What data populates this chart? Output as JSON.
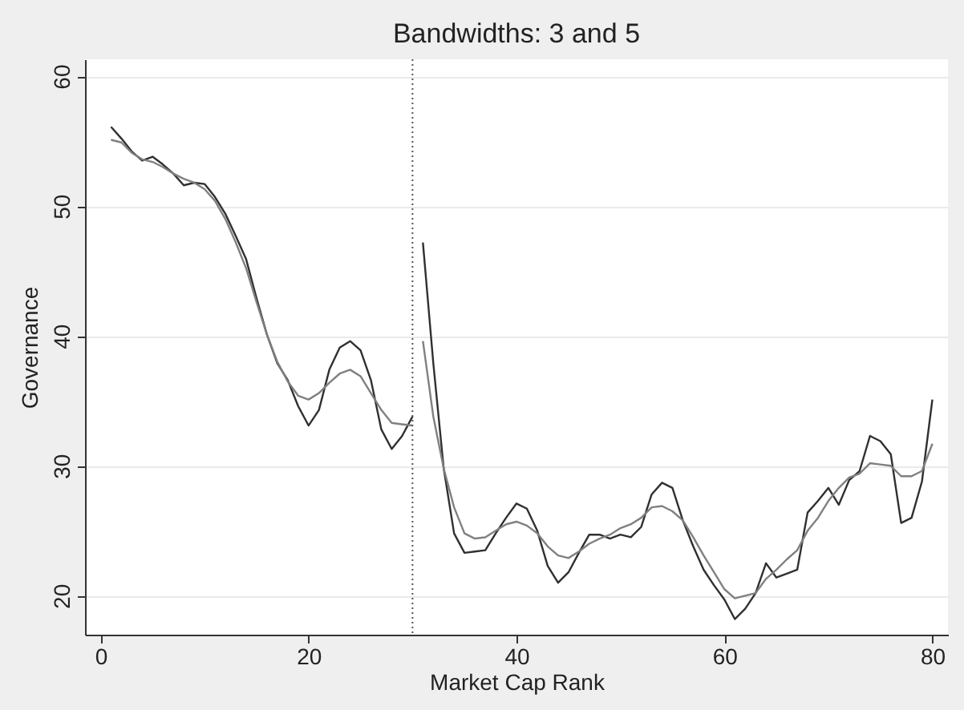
{
  "chart_data": {
    "type": "line",
    "title": "Bandwidths: 3 and 5",
    "xlabel": "Market Cap Rank",
    "ylabel": "Governance",
    "xlim": [
      -1.5,
      81.5
    ],
    "ylim": [
      17,
      61.3
    ],
    "xticks": [
      0,
      20,
      40,
      60,
      80
    ],
    "yticks": [
      20,
      30,
      40,
      50,
      60
    ],
    "grid": "y",
    "series": [
      {
        "color": "#303030",
        "x": [
          1,
          2,
          3,
          4,
          5,
          6,
          7,
          8,
          9,
          10,
          11,
          12,
          13,
          14,
          15,
          16,
          17,
          18,
          19,
          20,
          21,
          22,
          23,
          24,
          25,
          26,
          27,
          28,
          29,
          30
        ],
        "values": [
          56.1,
          55.2,
          54.2,
          53.5,
          53.8,
          53.2,
          52.5,
          51.6,
          51.8,
          51.7,
          50.7,
          49.4,
          47.7,
          45.9,
          42.9,
          40.1,
          37.9,
          36.6,
          34.6,
          33.1,
          34.3,
          37.4,
          39.1,
          39.6,
          38.9,
          36.6,
          32.8,
          31.3,
          32.3,
          33.8
        ]
      },
      {
        "color": "#303030",
        "x": [
          31,
          32,
          33,
          34,
          35,
          36,
          37,
          38,
          39,
          40,
          41,
          42,
          43,
          44,
          45,
          46,
          47,
          48,
          49,
          50,
          51,
          52,
          53,
          54,
          55,
          56,
          57,
          58,
          59,
          60,
          61,
          62,
          63,
          64,
          65,
          66,
          67,
          68,
          69,
          70,
          71,
          72,
          73,
          74,
          75,
          76,
          77,
          78,
          79,
          80
        ],
        "values": [
          47.2,
          37.9,
          29.8,
          24.8,
          23.3,
          23.4,
          23.5,
          24.8,
          26.0,
          27.1,
          26.7,
          25.0,
          22.3,
          21.0,
          21.8,
          23.3,
          24.7,
          24.7,
          24.4,
          24.7,
          24.5,
          25.3,
          27.8,
          28.7,
          28.3,
          25.8,
          23.8,
          22.0,
          20.8,
          19.7,
          18.2,
          19.0,
          20.2,
          22.5,
          21.4,
          21.7,
          22.0,
          26.4,
          27.3,
          28.3,
          27.0,
          28.9,
          29.6,
          32.3,
          31.9,
          30.9,
          25.6,
          26.0,
          28.8,
          35.1
        ]
      },
      {
        "color": "#808080",
        "x": [
          1,
          2,
          3,
          4,
          5,
          6,
          7,
          8,
          9,
          10,
          11,
          12,
          13,
          14,
          15,
          16,
          17,
          18,
          19,
          20,
          21,
          22,
          23,
          24,
          25,
          26,
          27,
          28,
          29,
          30
        ],
        "values": [
          55.1,
          54.9,
          54.1,
          53.6,
          53.4,
          53.0,
          52.5,
          52.1,
          51.8,
          51.3,
          50.4,
          49.0,
          47.2,
          45.2,
          42.6,
          40.1,
          38.0,
          36.5,
          35.4,
          35.1,
          35.6,
          36.4,
          37.1,
          37.4,
          36.9,
          35.6,
          34.3,
          33.3,
          33.2,
          33.1
        ]
      },
      {
        "color": "#808080",
        "x": [
          31,
          32,
          33,
          34,
          35,
          36,
          37,
          38,
          39,
          40,
          41,
          42,
          43,
          44,
          45,
          46,
          47,
          48,
          49,
          50,
          51,
          52,
          53,
          54,
          55,
          56,
          57,
          58,
          59,
          60,
          61,
          62,
          63,
          64,
          65,
          66,
          67,
          68,
          69,
          70,
          71,
          72,
          73,
          74,
          75,
          76,
          77,
          78,
          79,
          80
        ],
        "values": [
          39.6,
          33.8,
          29.8,
          26.8,
          24.8,
          24.4,
          24.5,
          25.0,
          25.5,
          25.7,
          25.4,
          24.8,
          23.8,
          23.1,
          22.9,
          23.4,
          24.0,
          24.4,
          24.7,
          25.2,
          25.5,
          26.0,
          26.8,
          26.9,
          26.5,
          25.8,
          24.5,
          23.1,
          21.8,
          20.5,
          19.8,
          20.0,
          20.2,
          21.3,
          22.0,
          22.8,
          23.5,
          25.0,
          26.0,
          27.3,
          28.3,
          29.1,
          29.4,
          30.2,
          30.1,
          30.0,
          29.2,
          29.2,
          29.6,
          31.7
        ]
      }
    ],
    "ref_lines": [
      {
        "axis": "x",
        "value": 30,
        "color": "#555555",
        "line_style": "dotted"
      }
    ]
  }
}
